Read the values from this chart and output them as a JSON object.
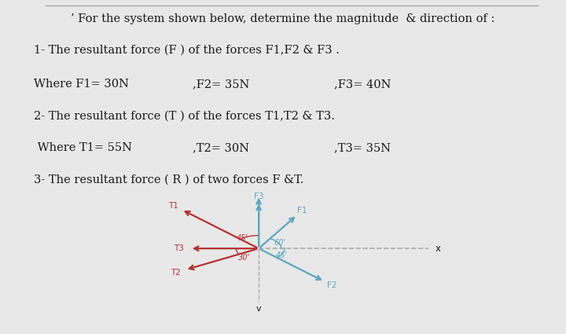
{
  "title_text": "’ For the system shown below, determine the magnitude  & direction of :",
  "line1": "1- The resultant force (F ) of the forces F1,F2 & F3 .",
  "line2_label": "Where F1= 30N",
  "line2_mid": ",F2= 35N",
  "line2_right": ",F3= 40N",
  "line3": "2- The resultant force (T ) of the forces T1,T2 & T3.",
  "line4_label": " Where T1= 55N",
  "line4_mid": ",T2= 30N",
  "line4_right": ",T3= 35N",
  "line5": "3- The resultant force ( R ) of two forces F &T.",
  "bg_color": "#e8e8e8",
  "text_color": "#1a1a1a",
  "blue_color": "#5aa8c0",
  "red_color": "#b83030",
  "dashed_color": "#aaaaaa",
  "angles_blue_deg": [
    90,
    60,
    -45
  ],
  "labels_blue": [
    "F3",
    "F1",
    "F2"
  ],
  "lengths_blue": [
    1.15,
    0.95,
    1.15
  ],
  "angles_red_deg": [
    135,
    -150,
    180
  ],
  "labels_red": [
    "T1",
    "T2",
    "T3"
  ],
  "lengths_red": [
    1.35,
    1.05,
    0.85
  ],
  "font_size_body": 10.5,
  "font_size_label": 7.5
}
